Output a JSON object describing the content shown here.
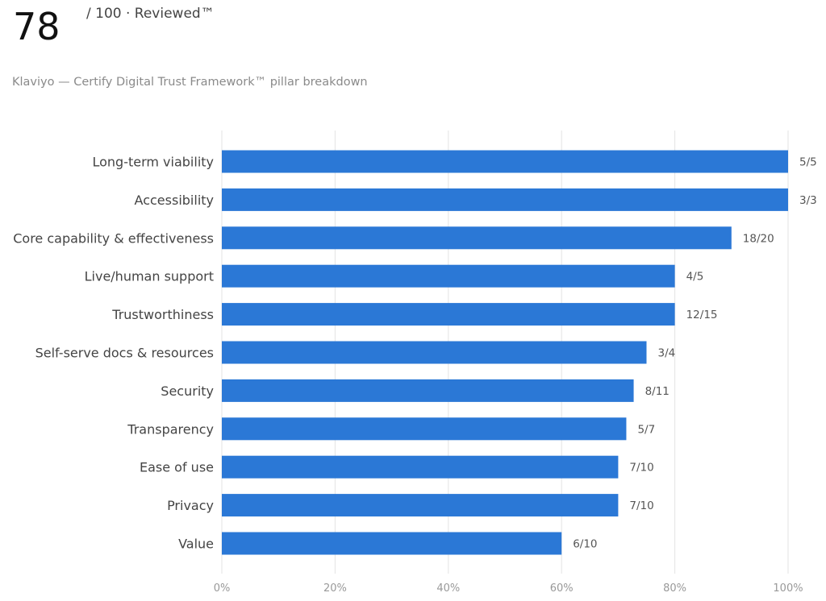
{
  "header": {
    "score": "78",
    "score_suffix": "/ 100 · Reviewed™",
    "subtitle": "Klaviyo — Certify Digital Trust Framework™ pillar breakdown"
  },
  "chart_data": {
    "type": "bar",
    "orientation": "horizontal",
    "categories": [
      "Long-term viability",
      "Accessibility",
      "Core capability & effectiveness",
      "Live/human support",
      "Trustworthiness",
      "Self-serve docs & resources",
      "Security",
      "Transparency",
      "Ease of use",
      "Privacy",
      "Value"
    ],
    "values": [
      100,
      100,
      90,
      80,
      80,
      75,
      72.73,
      71.43,
      70,
      70,
      60
    ],
    "value_labels": [
      "5/5",
      "3/3",
      "18/20",
      "4/5",
      "12/15",
      "3/4",
      "8/11",
      "5/7",
      "7/10",
      "7/10",
      "6/10"
    ],
    "xlim": [
      0,
      100
    ],
    "xticks": [
      "0%",
      "20%",
      "40%",
      "60%",
      "80%",
      "100%"
    ],
    "grid": "vertical",
    "bar_color": "#2b78d6"
  }
}
